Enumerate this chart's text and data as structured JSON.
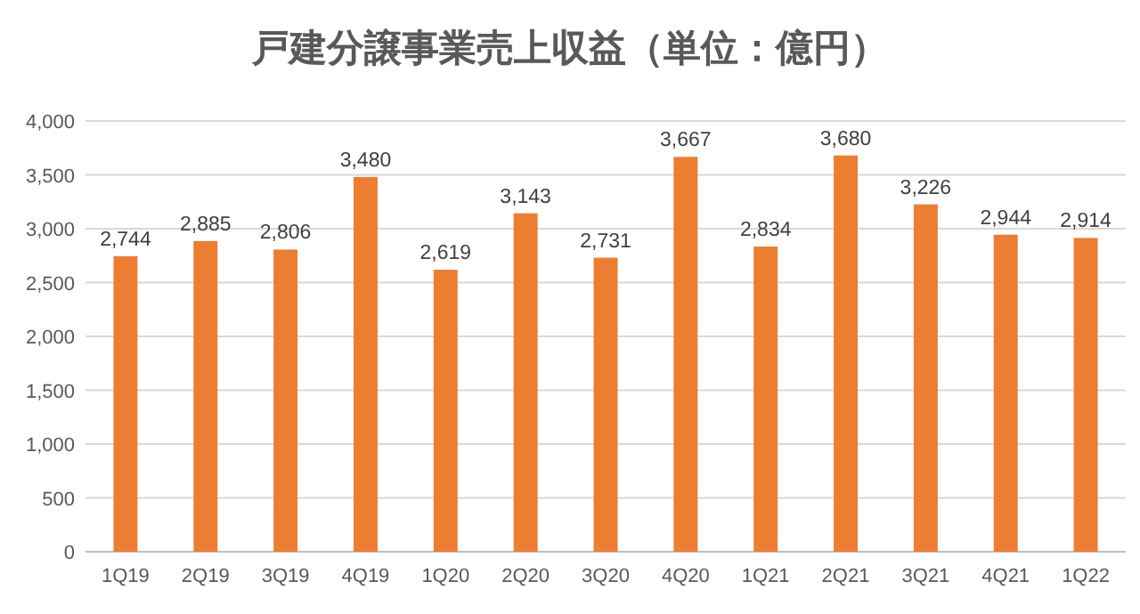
{
  "chart_data": {
    "type": "bar",
    "title": "戸建分譲事業売上収益（単位：億円）",
    "categories": [
      "1Q19",
      "2Q19",
      "3Q19",
      "4Q19",
      "1Q20",
      "2Q20",
      "3Q20",
      "4Q20",
      "1Q21",
      "2Q21",
      "3Q21",
      "4Q21",
      "1Q22"
    ],
    "values": [
      2744,
      2885,
      2806,
      3480,
      2619,
      3143,
      2731,
      3667,
      2834,
      3680,
      3226,
      2944,
      2914
    ],
    "value_labels": [
      "2,744",
      "2,885",
      "2,806",
      "3,480",
      "2,619",
      "3,143",
      "2,731",
      "3,667",
      "2,834",
      "3,680",
      "3,226",
      "2,944",
      "2,914"
    ],
    "color": "#ed7d31",
    "ylim": [
      0,
      4000
    ],
    "yticks": [
      0,
      {
        "value": 500,
        "label": "500"
      },
      {
        "value": 1000,
        "label": "1,000"
      },
      {
        "value": 1500,
        "label": "1,500"
      },
      {
        "value": 2000,
        "label": "2,000"
      },
      {
        "value": 2500,
        "label": "2,500"
      },
      {
        "value": 3000,
        "label": "3,000"
      },
      {
        "value": 3500,
        "label": "3,500"
      },
      {
        "value": 4000,
        "label": "4,000"
      }
    ],
    "grid": "y"
  }
}
